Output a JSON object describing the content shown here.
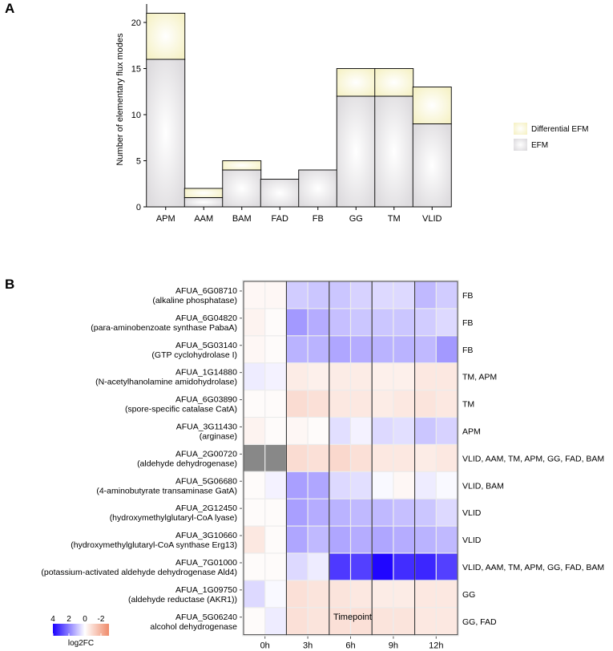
{
  "chart_data": [
    {
      "panel_label": "A",
      "type": "bar",
      "stacked": true,
      "xlabel": "",
      "ylabel": "Number of elementary flux modes",
      "categories": [
        "APM",
        "AAM",
        "BAM",
        "FAD",
        "FB",
        "GG",
        "TM",
        "VLID"
      ],
      "series": [
        {
          "name": "EFM",
          "values": [
            16,
            1,
            4,
            3,
            4,
            12,
            12,
            9
          ],
          "color": "#dedcdf"
        },
        {
          "name": "Differential EFM",
          "values": [
            5,
            1,
            1,
            0,
            0,
            3,
            3,
            4
          ],
          "color": "#f6f2c8"
        }
      ],
      "legend_order": [
        "Differential EFM",
        "EFM"
      ],
      "legend": "right",
      "ylim": [
        0,
        22
      ],
      "yticks": [
        0,
        5,
        10,
        15,
        20
      ],
      "grid": false
    },
    {
      "panel_label": "B",
      "type": "heatmap",
      "xlabel": "Timepoint",
      "timepoints": [
        "0h",
        "3h",
        "6h",
        "9h",
        "12h"
      ],
      "rows": [
        {
          "id": "AFUA_6G08710",
          "name": "(alkaline phosphatase)",
          "pathways": "FB",
          "values": [
            -0.2,
            -0.2,
            0.8,
            0.9,
            0.9,
            0.7,
            0.6,
            0.6,
            1.1,
            0.8
          ]
        },
        {
          "id": "AFUA_6G04820",
          "name": "(para-aminobenzoate synthase PabaA)",
          "pathways": "FB",
          "values": [
            -0.3,
            -0.1,
            1.6,
            1.3,
            1.0,
            0.9,
            0.9,
            0.9,
            0.8,
            0.6
          ]
        },
        {
          "id": "AFUA_5G03140",
          "name": "(GTP cyclohydrolase I)",
          "pathways": "FB",
          "values": [
            -0.2,
            -0.1,
            1.2,
            1.2,
            1.4,
            1.3,
            1.2,
            1.2,
            1.1,
            1.6
          ]
        },
        {
          "id": "AFUA_1G14880",
          "name": "(N-acetylhanolamine amidohydrolase)",
          "pathways": "TM, APM",
          "values": [
            0.3,
            0.2,
            -0.5,
            -0.4,
            -0.5,
            -0.5,
            -0.4,
            -0.4,
            -0.6,
            -0.6
          ]
        },
        {
          "id": "AFUA_6G03890",
          "name": "(spore-specific catalase CatA)",
          "pathways": "TM",
          "values": [
            -0.1,
            -0.1,
            -0.9,
            -0.8,
            -0.6,
            -0.6,
            -0.5,
            -0.6,
            -0.7,
            -0.6
          ]
        },
        {
          "id": "AFUA_3G11430",
          "name": "(arginase)",
          "pathways": "APM",
          "values": [
            -0.3,
            -0.1,
            -0.2,
            -0.1,
            0.5,
            0.2,
            0.6,
            0.5,
            0.9,
            0.7
          ]
        },
        {
          "id": "AFUA_2G00720",
          "name": "(aldehyde dehydrogenase)",
          "pathways": "VLID, AAM, TM, APM, GG, FAD, BAM",
          "values": [
            null,
            null,
            -0.9,
            -0.8,
            -1.0,
            -0.8,
            -0.6,
            -0.6,
            -0.5,
            -0.6
          ]
        },
        {
          "id": "AFUA_5G06680",
          "name": "(4-aminobutyrate transaminase GatA)",
          "pathways": "VLID, BAM",
          "values": [
            -0.1,
            0.2,
            1.5,
            1.4,
            0.6,
            0.5,
            0.1,
            -0.2,
            0.3,
            0.1
          ]
        },
        {
          "id": "AFUA_2G12450",
          "name": "(hydroxymethylglutaryl-CoA lyase)",
          "pathways": "VLID",
          "values": [
            -0.1,
            -0.1,
            1.5,
            1.3,
            1.2,
            1.1,
            1.1,
            1.0,
            0.9,
            0.6
          ]
        },
        {
          "id": "AFUA_3G10660",
          "name": "(hydroxymethylglutaryl-CoA synthase Erg13)",
          "pathways": "VLID",
          "values": [
            -0.6,
            -0.1,
            1.4,
            1.1,
            1.4,
            1.3,
            1.4,
            1.3,
            1.2,
            1.1
          ]
        },
        {
          "id": "AFUA_7G01000",
          "name": "(potassium-activated aldehyde dehydrogenase Ald4)",
          "pathways": "VLID, AAM, TM, APM, GG, FAD, BAM",
          "values": [
            -0.1,
            -0.1,
            0.6,
            0.3,
            3.1,
            3.0,
            3.9,
            3.3,
            3.4,
            3.0
          ]
        },
        {
          "id": "AFUA_1G09750",
          "name": "(aldehyde reductase (AKR1))",
          "pathways": "GG",
          "values": [
            0.6,
            0.1,
            -0.8,
            -0.7,
            -0.7,
            -0.6,
            -0.5,
            -0.5,
            -0.6,
            -0.6
          ]
        },
        {
          "id": "AFUA_5G06240",
          "name": "alcohol dehydrogenase",
          "pathways": "GG, FAD",
          "values": [
            -0.1,
            0.3,
            -0.8,
            -0.7,
            -0.8,
            -0.8,
            -0.7,
            -0.7,
            -0.6,
            -0.6
          ]
        }
      ],
      "replicates_per_timepoint": 2,
      "missing_color": "#888888",
      "colorbar": {
        "title": "log2FC",
        "ticks": [
          4,
          2,
          0,
          -2
        ],
        "range": [
          4,
          -3
        ],
        "low_color": "#1a00ff",
        "mid_color": "#ffffff",
        "high_color": "#ef8b6a"
      }
    }
  ]
}
